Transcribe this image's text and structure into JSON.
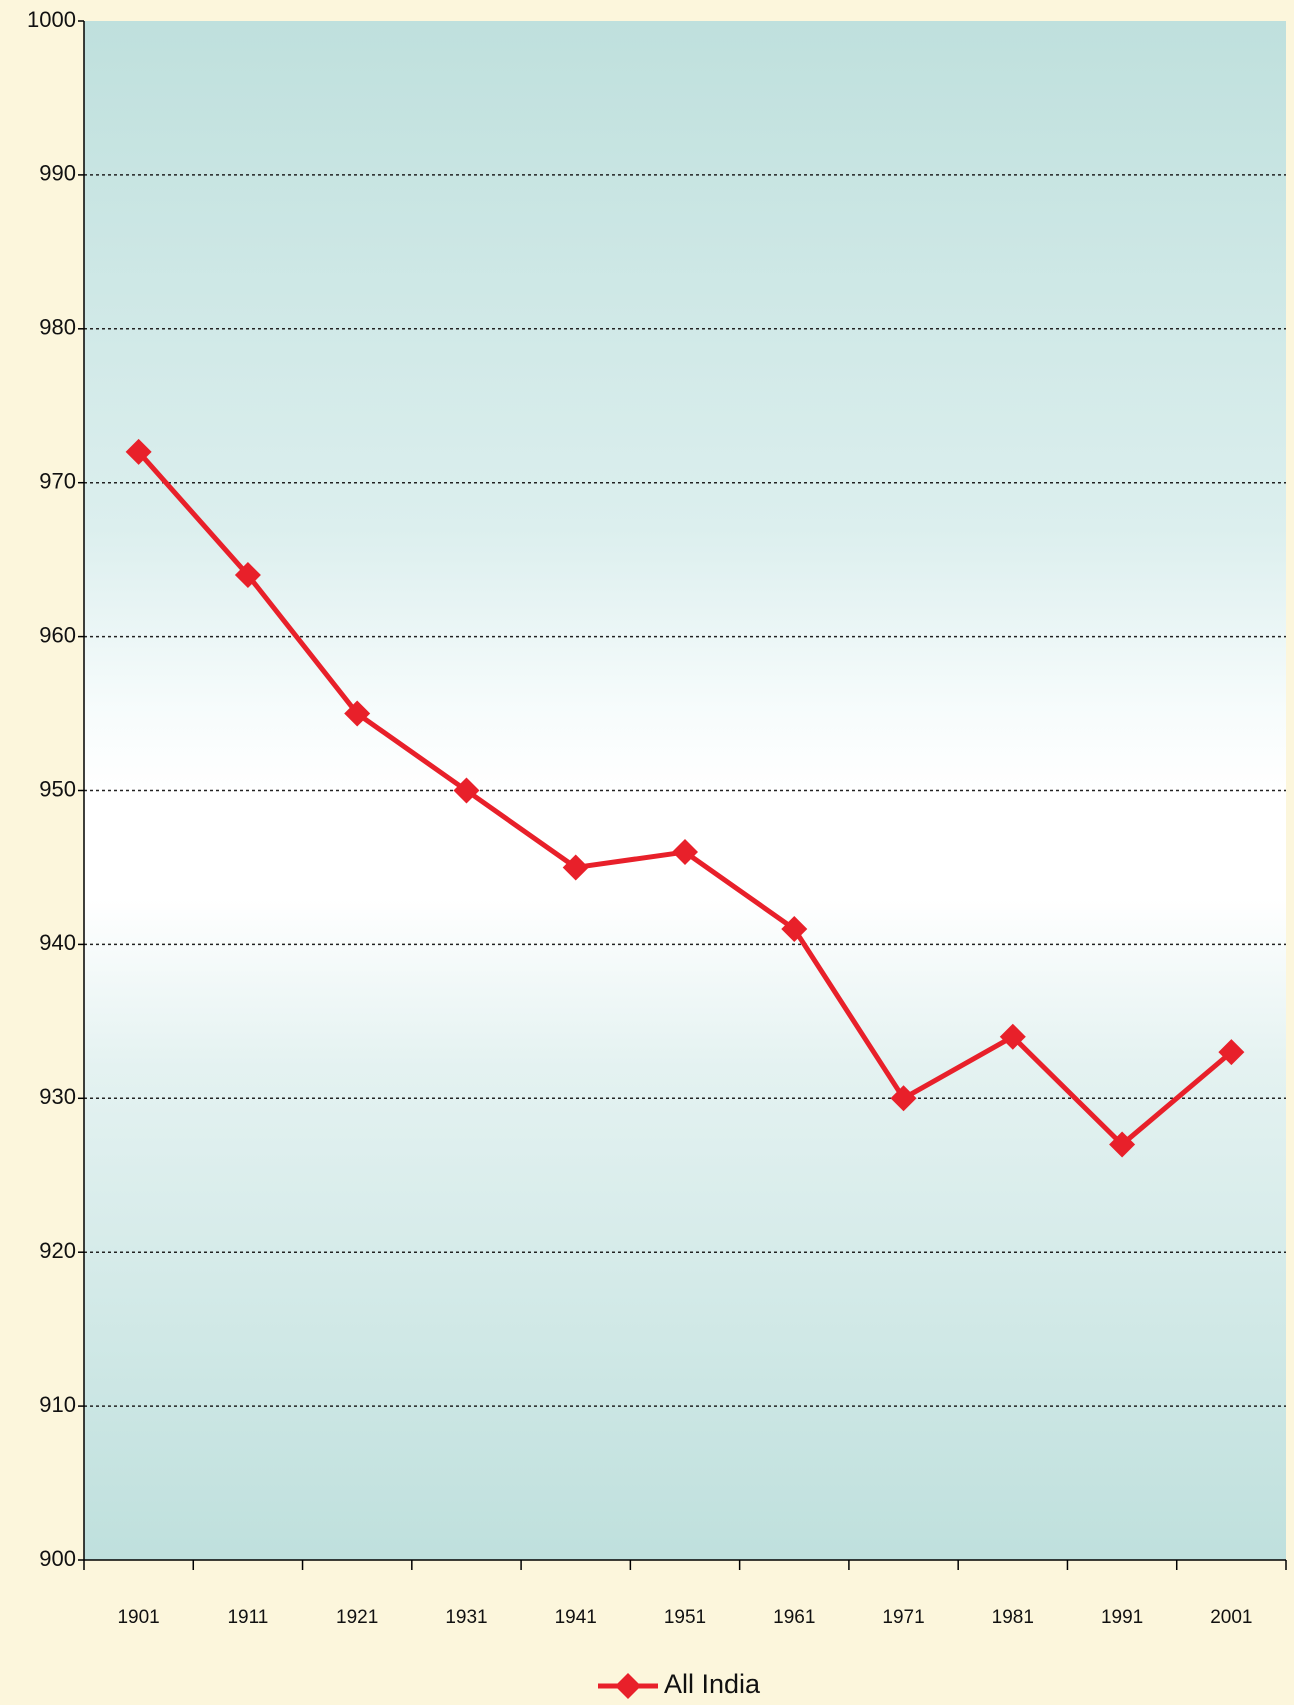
{
  "chart_data": {
    "type": "line",
    "categories": [
      "1901",
      "1911",
      "1921",
      "1931",
      "1941",
      "1951",
      "1961",
      "1971",
      "1981",
      "1991",
      "2001"
    ],
    "series": [
      {
        "name": "All India",
        "color": "#e8202a",
        "values": [
          972,
          964,
          955,
          950,
          945,
          946,
          941,
          930,
          934,
          927,
          933
        ]
      }
    ],
    "ylim": [
      900,
      1000
    ],
    "yticks": [
      900,
      910,
      920,
      930,
      940,
      950,
      960,
      970,
      980,
      990,
      1000
    ],
    "grid": true,
    "legend": "bottom"
  }
}
